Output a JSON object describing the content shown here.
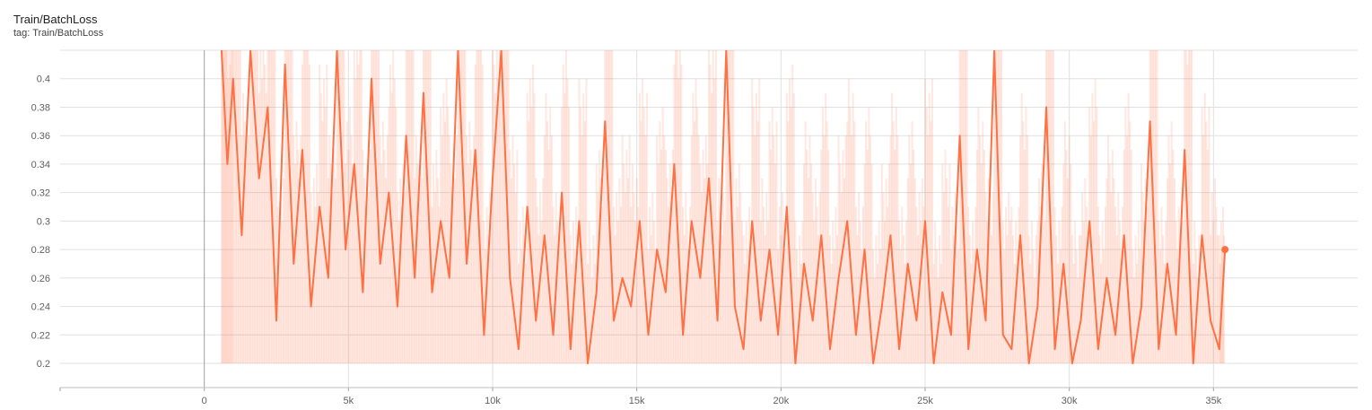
{
  "card": {
    "title": "Train/BatchLoss",
    "tag": "tag: Train/BatchLoss"
  },
  "chart_data": {
    "type": "line",
    "title": "Train/BatchLoss",
    "xlabel": "",
    "ylabel": "",
    "xlim": [
      -5000,
      40000
    ],
    "ylim": [
      0.183,
      0.42
    ],
    "x_ticks": [
      0,
      5000,
      10000,
      15000,
      20000,
      25000,
      30000,
      35000
    ],
    "x_tick_labels": [
      "0",
      "5k",
      "10k",
      "15k",
      "20k",
      "25k",
      "30k",
      "35k"
    ],
    "y_ticks": [
      0.2,
      0.22,
      0.24,
      0.26,
      0.28,
      0.3,
      0.32,
      0.34,
      0.36,
      0.38,
      0.4
    ],
    "y_tick_labels": [
      "0.2",
      "0.22",
      "0.24",
      "0.26",
      "0.28",
      "0.3",
      "0.32",
      "0.34",
      "0.36",
      "0.38",
      "0.4"
    ],
    "grid": true,
    "legend": "none",
    "series": [
      {
        "color": "#ff7043",
        "smoothed": true,
        "x": [
          600,
          800,
          1000,
          1300,
          1600,
          1900,
          2200,
          2500,
          2800,
          3100,
          3400,
          3700,
          4000,
          4300,
          4600,
          4900,
          5200,
          5500,
          5800,
          6100,
          6400,
          6700,
          7000,
          7300,
          7600,
          7900,
          8200,
          8500,
          8800,
          9100,
          9400,
          9700,
          10000,
          10300,
          10600,
          10900,
          11200,
          11500,
          11800,
          12100,
          12400,
          12700,
          13000,
          13300,
          13600,
          13900,
          14200,
          14500,
          14800,
          15100,
          15400,
          15700,
          16000,
          16300,
          16600,
          16900,
          17200,
          17500,
          17800,
          18100,
          18400,
          18700,
          19000,
          19300,
          19600,
          19900,
          20200,
          20500,
          20800,
          21100,
          21400,
          21700,
          22000,
          22300,
          22600,
          22900,
          23200,
          23500,
          23800,
          24100,
          24400,
          24700,
          25000,
          25300,
          25600,
          25900,
          26200,
          26500,
          26800,
          27100,
          27400,
          27700,
          28000,
          28300,
          28600,
          28900,
          29200,
          29500,
          29800,
          30100,
          30400,
          30700,
          31000,
          31300,
          31600,
          31900,
          32200,
          32500,
          32800,
          33100,
          33400,
          33700,
          34000,
          34300,
          34600,
          34900,
          35200,
          35400
        ],
        "values": [
          0.42,
          0.34,
          0.4,
          0.29,
          0.42,
          0.33,
          0.38,
          0.23,
          0.41,
          0.27,
          0.35,
          0.24,
          0.31,
          0.26,
          0.42,
          0.28,
          0.34,
          0.25,
          0.4,
          0.27,
          0.32,
          0.24,
          0.36,
          0.26,
          0.39,
          0.25,
          0.3,
          0.26,
          0.42,
          0.27,
          0.35,
          0.22,
          0.33,
          0.42,
          0.26,
          0.21,
          0.31,
          0.23,
          0.29,
          0.22,
          0.32,
          0.21,
          0.3,
          0.2,
          0.25,
          0.37,
          0.23,
          0.26,
          0.24,
          0.3,
          0.22,
          0.28,
          0.25,
          0.34,
          0.22,
          0.3,
          0.26,
          0.33,
          0.23,
          0.42,
          0.24,
          0.21,
          0.3,
          0.23,
          0.28,
          0.22,
          0.31,
          0.2,
          0.27,
          0.23,
          0.29,
          0.21,
          0.26,
          0.3,
          0.22,
          0.28,
          0.2,
          0.24,
          0.29,
          0.21,
          0.27,
          0.23,
          0.3,
          0.2,
          0.25,
          0.22,
          0.36,
          0.21,
          0.28,
          0.23,
          0.42,
          0.22,
          0.21,
          0.29,
          0.2,
          0.24,
          0.38,
          0.21,
          0.27,
          0.2,
          0.23,
          0.3,
          0.21,
          0.26,
          0.22,
          0.29,
          0.2,
          0.24,
          0.37,
          0.21,
          0.27,
          0.22,
          0.35,
          0.2,
          0.29,
          0.23,
          0.21,
          0.28
        ]
      }
    ]
  }
}
